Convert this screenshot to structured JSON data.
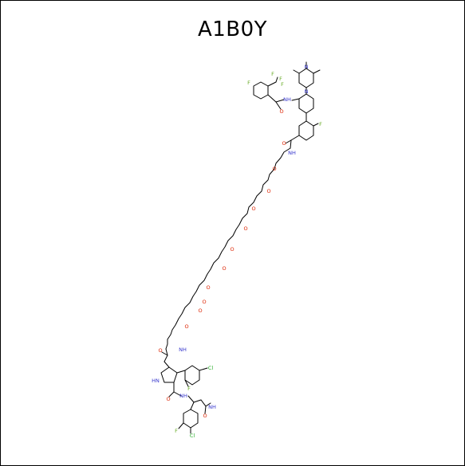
{
  "title": "A1B0Y",
  "colors": {
    "bond": "#000000",
    "nitrogen": "#3333cc",
    "oxygen": "#dd2200",
    "fluorine": "#66aa22",
    "chlorine": "#22aa22",
    "background": "#ffffff",
    "border": "#000000"
  },
  "atom_labels": {
    "f_top": "F",
    "f_cf3_a": "F",
    "f_cf3_b": "F",
    "f_cf3_c": "F",
    "nh_amide_top": "NH",
    "o_amide_top": "O",
    "n_piperazine_1": "N",
    "n_piperazine_2": "N",
    "f_biaryl": "F",
    "o_amide_mid": "O",
    "nh_amide_mid": "NH",
    "o_peg_1": "O",
    "o_peg_2": "O",
    "o_peg_3": "O",
    "o_peg_4": "O",
    "o_peg_5": "O",
    "o_peg_6": "O",
    "o_peg_7": "O",
    "o_peg_8": "O",
    "o_peg_9": "O",
    "o_peg_10": "O",
    "nh_amide_low": "NH",
    "o_amide_low": "O",
    "nh_pyrrole": "HN",
    "cl_aryl_top": "Cl",
    "f_aryl_top": "F",
    "o_amide_pyrrole": "O",
    "nh_amide_pyrrole": "NH",
    "nh2_terminal": "NH",
    "o_terminal": "O",
    "f_aryl_bottom": "F",
    "cl_aryl_bottom": "Cl"
  }
}
